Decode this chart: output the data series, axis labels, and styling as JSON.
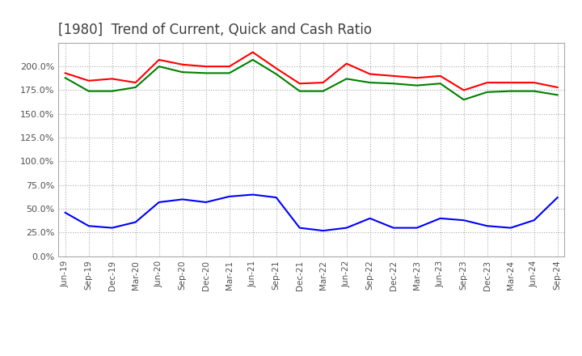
{
  "title": "[1980]  Trend of Current, Quick and Cash Ratio",
  "x_labels": [
    "Jun-19",
    "Sep-19",
    "Dec-19",
    "Mar-20",
    "Jun-20",
    "Sep-20",
    "Dec-20",
    "Mar-21",
    "Jun-21",
    "Sep-21",
    "Dec-21",
    "Mar-22",
    "Jun-22",
    "Sep-22",
    "Dec-22",
    "Mar-23",
    "Jun-23",
    "Sep-23",
    "Dec-23",
    "Mar-24",
    "Jun-24",
    "Sep-24"
  ],
  "current_ratio": [
    193,
    185,
    187,
    183,
    207,
    202,
    200,
    200,
    215,
    198,
    182,
    183,
    203,
    192,
    190,
    188,
    190,
    175,
    183,
    183,
    183,
    178
  ],
  "quick_ratio": [
    188,
    174,
    174,
    178,
    200,
    194,
    193,
    193,
    207,
    192,
    174,
    174,
    187,
    183,
    182,
    180,
    182,
    165,
    173,
    174,
    174,
    170
  ],
  "cash_ratio": [
    46,
    32,
    30,
    36,
    57,
    60,
    57,
    63,
    65,
    62,
    30,
    27,
    30,
    40,
    30,
    30,
    40,
    38,
    32,
    30,
    38,
    62
  ],
  "ylim": [
    0,
    225
  ],
  "yticks": [
    0,
    25,
    50,
    75,
    100,
    125,
    150,
    175,
    200
  ],
  "current_color": "#ff0000",
  "quick_color": "#008000",
  "cash_color": "#0000ff",
  "background_color": "#ffffff",
  "grid_color": "#aaaaaa",
  "title_color": "#404040",
  "title_fontsize": 12
}
